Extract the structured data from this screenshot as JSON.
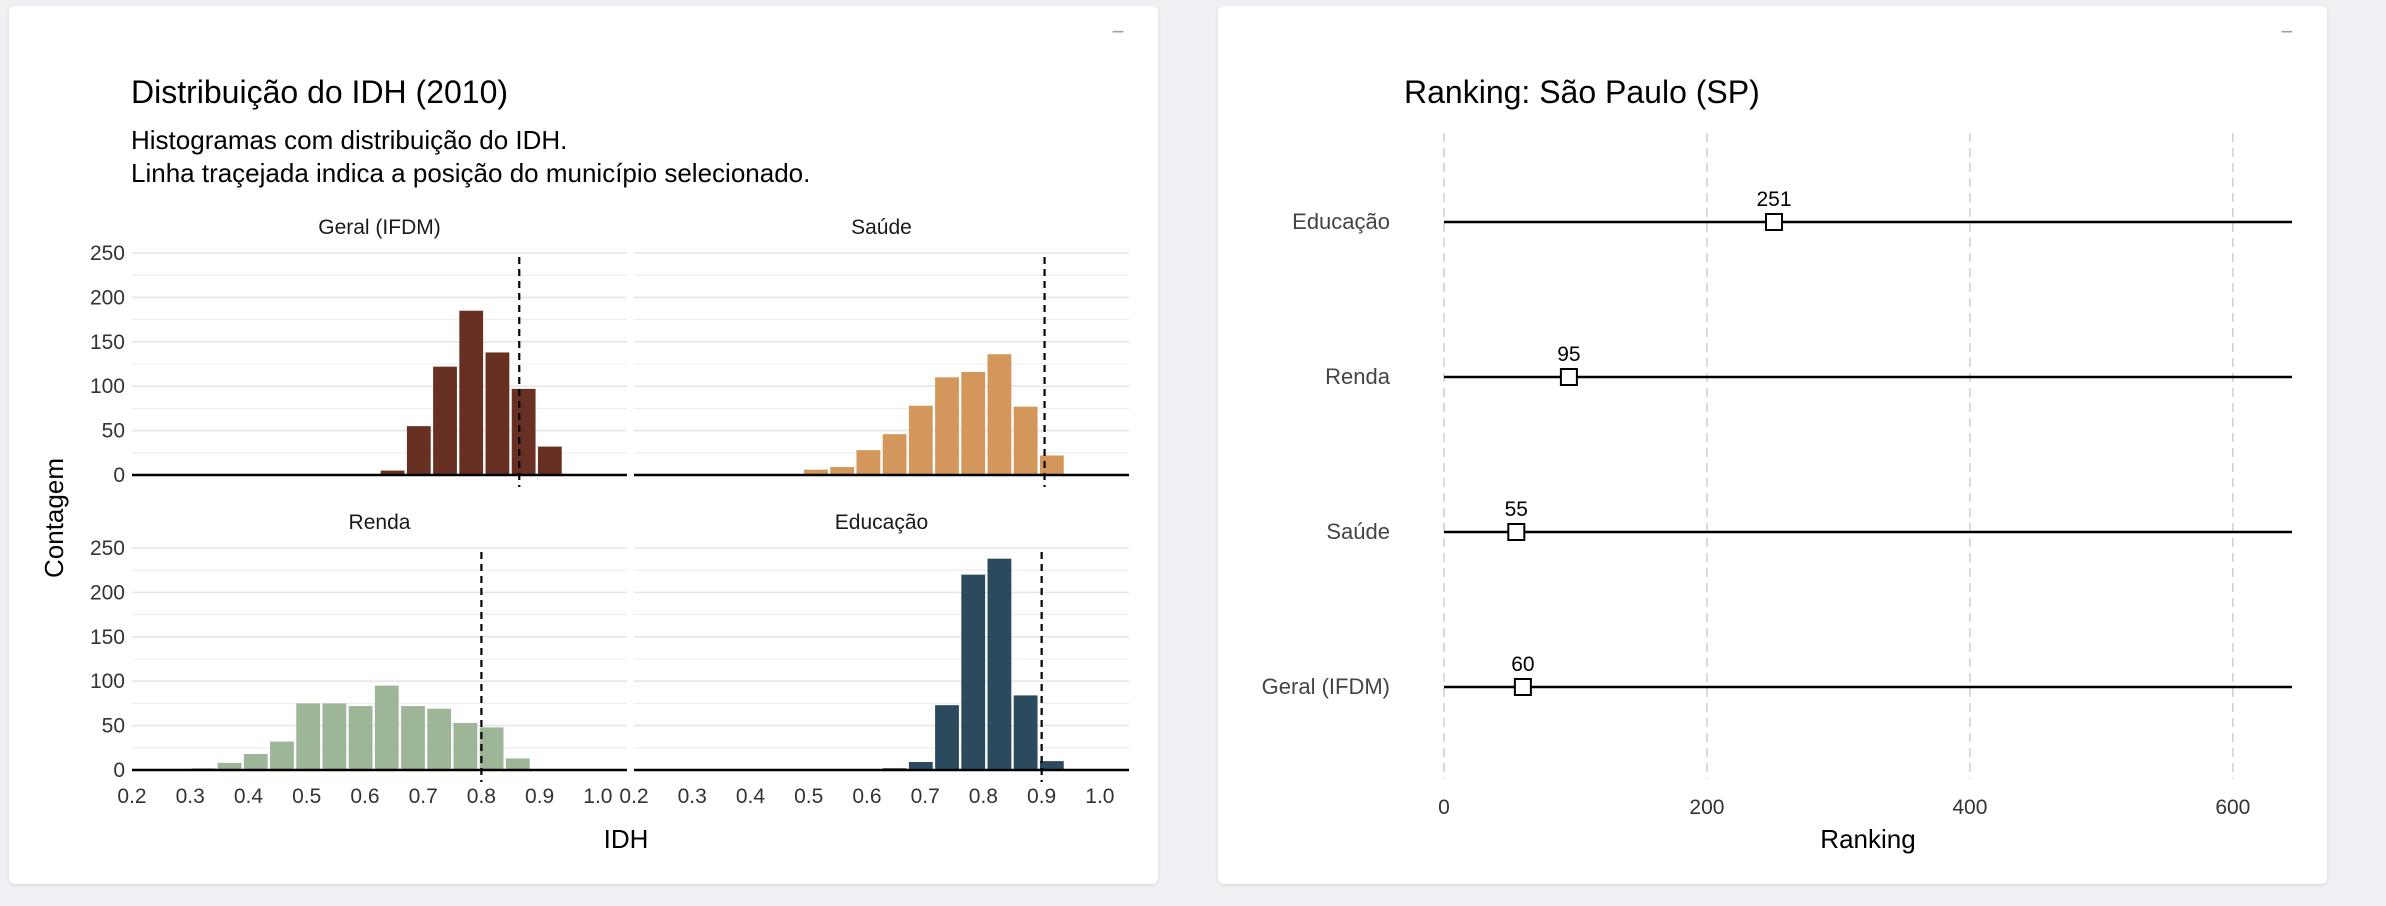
{
  "panels": {
    "minimize_label": "−"
  },
  "chart_data": [
    {
      "type": "bar",
      "title": "Distribuição do IDH (2010)",
      "subtitle_lines": [
        "Histogramas com distribuição do IDH.",
        "Linha traçejada indica a posição do município selecionado."
      ],
      "xlabel": "IDH",
      "ylabel": "Contagem",
      "xlim": [
        0.2,
        1.05
      ],
      "ylim": [
        0,
        250
      ],
      "xticks": [
        "0.2",
        "0.3",
        "0.4",
        "0.5",
        "0.6",
        "0.7",
        "0.8",
        "0.9",
        "1.0"
      ],
      "yticks": [
        "0",
        "50",
        "100",
        "150",
        "200",
        "250"
      ],
      "bin_width": 0.045,
      "facets": [
        {
          "name": "Geral (IFDM)",
          "color": "#673022",
          "marker_x": 0.865,
          "bins": [
            {
              "x": 0.625,
              "count": 5
            },
            {
              "x": 0.67,
              "count": 55
            },
            {
              "x": 0.715,
              "count": 122
            },
            {
              "x": 0.76,
              "count": 185
            },
            {
              "x": 0.805,
              "count": 138
            },
            {
              "x": 0.85,
              "count": 97
            },
            {
              "x": 0.895,
              "count": 32
            }
          ]
        },
        {
          "name": "Saúde",
          "color": "#d4975b",
          "marker_x": 0.905,
          "bins": [
            {
              "x": 0.49,
              "count": 6
            },
            {
              "x": 0.535,
              "count": 9
            },
            {
              "x": 0.58,
              "count": 28
            },
            {
              "x": 0.625,
              "count": 46
            },
            {
              "x": 0.67,
              "count": 78
            },
            {
              "x": 0.715,
              "count": 110
            },
            {
              "x": 0.76,
              "count": 116
            },
            {
              "x": 0.805,
              "count": 136
            },
            {
              "x": 0.85,
              "count": 77
            },
            {
              "x": 0.895,
              "count": 22
            }
          ]
        },
        {
          "name": "Renda",
          "color": "#9cb697",
          "marker_x": 0.8,
          "bins": [
            {
              "x": 0.3,
              "count": 2
            },
            {
              "x": 0.345,
              "count": 8
            },
            {
              "x": 0.39,
              "count": 18
            },
            {
              "x": 0.435,
              "count": 32
            },
            {
              "x": 0.48,
              "count": 75
            },
            {
              "x": 0.525,
              "count": 75
            },
            {
              "x": 0.57,
              "count": 72
            },
            {
              "x": 0.615,
              "count": 95
            },
            {
              "x": 0.66,
              "count": 72
            },
            {
              "x": 0.705,
              "count": 69
            },
            {
              "x": 0.75,
              "count": 53
            },
            {
              "x": 0.795,
              "count": 48
            },
            {
              "x": 0.84,
              "count": 13
            }
          ]
        },
        {
          "name": "Educação",
          "color": "#2c4a5e",
          "marker_x": 0.9,
          "bins": [
            {
              "x": 0.625,
              "count": 2
            },
            {
              "x": 0.67,
              "count": 9
            },
            {
              "x": 0.715,
              "count": 73
            },
            {
              "x": 0.76,
              "count": 220
            },
            {
              "x": 0.805,
              "count": 238
            },
            {
              "x": 0.85,
              "count": 84
            },
            {
              "x": 0.895,
              "count": 10
            }
          ]
        }
      ]
    },
    {
      "type": "scatter",
      "title": "Ranking: São Paulo (SP)",
      "xlabel": "Ranking",
      "xlim": [
        0,
        645
      ],
      "xticks": [
        "0",
        "200",
        "400",
        "600"
      ],
      "categories": [
        "Educação",
        "Renda",
        "Saúde",
        "Geral (IFDM)"
      ],
      "values": [
        251,
        95,
        55,
        60
      ],
      "labels": [
        "251",
        "95",
        "55",
        "60"
      ],
      "range_max": 645
    }
  ]
}
